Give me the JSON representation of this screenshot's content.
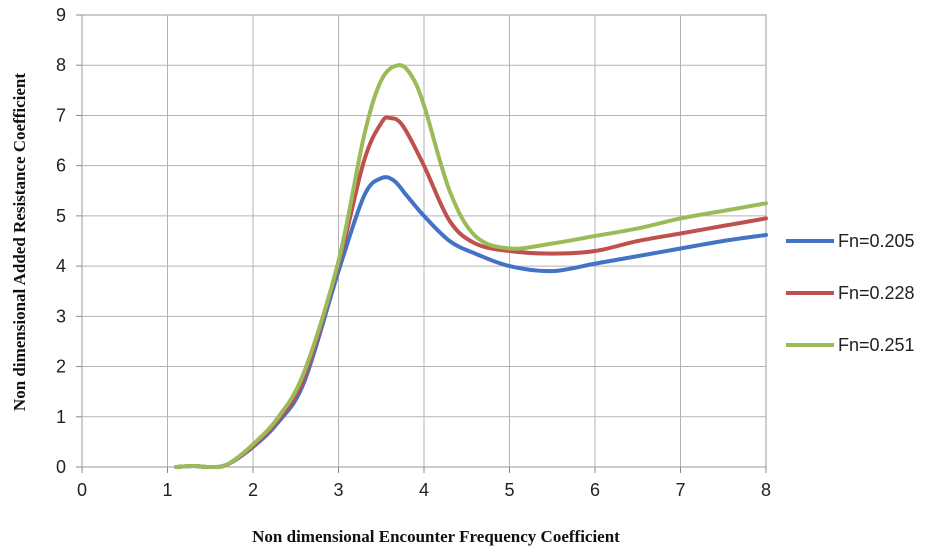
{
  "chart_data": {
    "type": "line",
    "title": "",
    "xlabel": "Non dimensional Encounter Frequency Coefficient",
    "ylabel": "Non dimensional Added Resistance Coefficient",
    "xlim": [
      0,
      8
    ],
    "ylim": [
      0,
      9
    ],
    "xticks": [
      "0",
      "1",
      "2",
      "3",
      "4",
      "5",
      "6",
      "7",
      "8"
    ],
    "yticks": [
      "0",
      "1",
      "2",
      "3",
      "4",
      "5",
      "6",
      "7",
      "8",
      "9"
    ],
    "grid": true,
    "legend_position": "right",
    "series": [
      {
        "name": "Fn=0.205",
        "color": "#4472C4",
        "x": [
          1.1,
          1.3,
          1.5,
          1.7,
          2.0,
          2.3,
          2.6,
          3.0,
          3.3,
          3.5,
          3.65,
          3.8,
          4.0,
          4.3,
          4.6,
          5.0,
          5.5,
          6.0,
          6.5,
          7.0,
          7.5,
          8.0
        ],
        "y": [
          0.0,
          0.02,
          0.0,
          0.05,
          0.4,
          0.9,
          1.7,
          3.9,
          5.4,
          5.75,
          5.7,
          5.4,
          5.0,
          4.5,
          4.25,
          4.0,
          3.9,
          4.05,
          4.2,
          4.35,
          4.5,
          4.62
        ]
      },
      {
        "name": "Fn=0.228",
        "color": "#C0504D",
        "x": [
          1.1,
          1.3,
          1.5,
          1.7,
          2.0,
          2.3,
          2.6,
          3.0,
          3.3,
          3.5,
          3.6,
          3.75,
          4.0,
          4.3,
          4.6,
          5.0,
          5.5,
          6.0,
          6.5,
          7.0,
          7.5,
          8.0
        ],
        "y": [
          0.0,
          0.02,
          0.0,
          0.05,
          0.42,
          0.95,
          1.8,
          4.05,
          6.1,
          6.85,
          6.95,
          6.8,
          6.0,
          4.9,
          4.45,
          4.3,
          4.25,
          4.3,
          4.5,
          4.65,
          4.8,
          4.95
        ]
      },
      {
        "name": "Fn=0.251",
        "color": "#9BBB59",
        "x": [
          1.1,
          1.3,
          1.5,
          1.7,
          2.0,
          2.3,
          2.6,
          3.0,
          3.3,
          3.5,
          3.7,
          3.85,
          4.0,
          4.3,
          4.6,
          5.0,
          5.5,
          6.0,
          6.5,
          7.0,
          7.5,
          8.0
        ],
        "y": [
          0.0,
          0.02,
          0.0,
          0.05,
          0.45,
          1.0,
          1.9,
          4.1,
          6.6,
          7.7,
          8.0,
          7.8,
          7.2,
          5.5,
          4.6,
          4.35,
          4.45,
          4.6,
          4.75,
          4.95,
          5.1,
          5.25
        ]
      }
    ]
  }
}
